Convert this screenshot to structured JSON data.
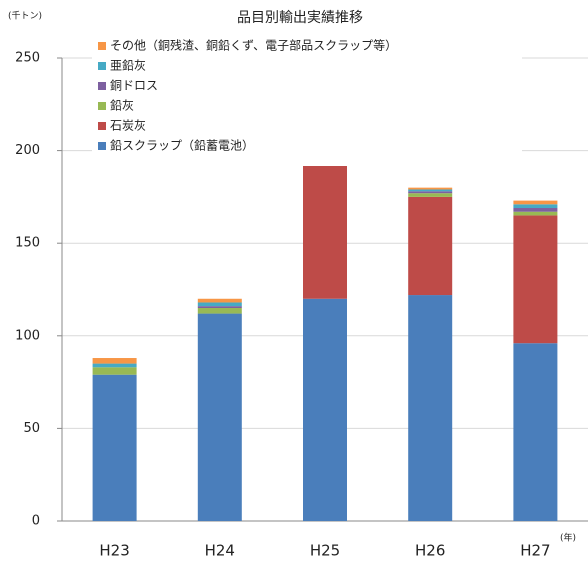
{
  "chart_data": {
    "type": "stacked_bar",
    "title": "品目別輸出実績推移",
    "y_unit": "(千トン)",
    "x_unit": "(年)",
    "categories": [
      "H23",
      "H24",
      "H25",
      "H26",
      "H27"
    ],
    "series": [
      {
        "name": "鉛スクラップ（鉛蓄電池）",
        "color": "#4a7ebb",
        "values": [
          79,
          112,
          120,
          122,
          96
        ]
      },
      {
        "name": "石炭灰",
        "color": "#be4b48",
        "values": [
          0,
          0,
          72,
          53,
          69
        ]
      },
      {
        "name": "鉛灰",
        "color": "#98b954",
        "values": [
          4,
          3,
          0,
          2,
          2
        ]
      },
      {
        "name": "銅ドロス",
        "color": "#7d60a0",
        "values": [
          0,
          1,
          0,
          1,
          2
        ]
      },
      {
        "name": "亜鉛灰",
        "color": "#46aac5",
        "values": [
          2,
          2,
          0,
          1,
          2
        ]
      },
      {
        "name": "その他（銅残渣、銅鉛くず、電子部品スクラップ等）",
        "color": "#f79646",
        "values": [
          3,
          2,
          0,
          1,
          2
        ]
      }
    ],
    "ylim": [
      0,
      250
    ],
    "yticks": [
      0,
      50,
      100,
      150,
      200,
      250
    ],
    "grid": true,
    "legend": "upper left"
  }
}
